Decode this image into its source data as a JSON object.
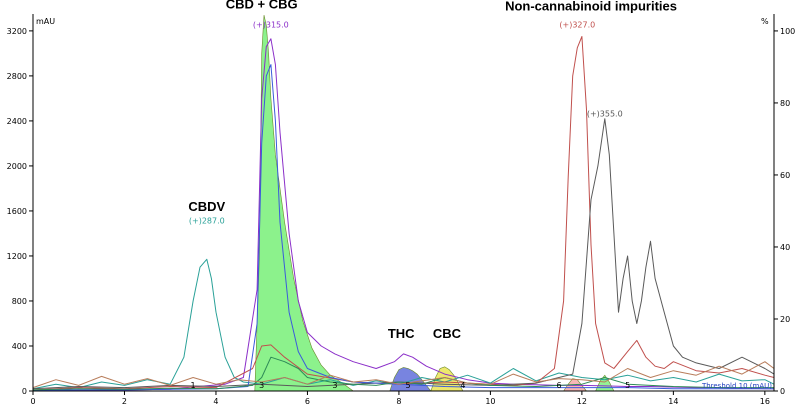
{
  "chart_data": {
    "type": "line",
    "title": "",
    "xlabel": "",
    "ylabel": "mAU",
    "y2label": "%",
    "xlim": [
      0,
      16.2
    ],
    "ylim": [
      0,
      3350
    ],
    "y2lim": [
      0,
      104.7
    ],
    "x_ticks": [
      0,
      2,
      4,
      6,
      8,
      10,
      12,
      14,
      16
    ],
    "y_ticks": [
      0,
      400,
      800,
      1200,
      1600,
      2000,
      2400,
      2800,
      3200
    ],
    "y2_ticks": [
      0,
      20,
      40,
      60,
      80,
      100
    ],
    "y2_tick_labels": [
      "0",
      "20",
      "40",
      "60",
      "80",
      "100"
    ],
    "grid": false,
    "annotations": [
      {
        "text": "CBD + CBG",
        "x": 5.0,
        "y": 3400
      },
      {
        "text": "CBDV",
        "x": 3.8,
        "y": 1600
      },
      {
        "text": "THC",
        "x": 8.05,
        "y": 470
      },
      {
        "text": "CBC",
        "x": 9.05,
        "y": 470
      },
      {
        "text": "Non-cannabinoid impurities",
        "x": 12.2,
        "y": 3380
      }
    ],
    "peak_labels": [
      {
        "text": "(+)315.0",
        "x": 5.2,
        "y": 3230,
        "color": "#8b2fc9"
      },
      {
        "text": "(+)287.0",
        "x": 3.8,
        "y": 1490,
        "color": "#2aa198"
      },
      {
        "text": "(+)327.0",
        "x": 11.9,
        "y": 3230,
        "color": "#c0504d"
      },
      {
        "text": "(+)355.0",
        "x": 12.5,
        "y": 2440,
        "color": "#555555"
      }
    ],
    "peak_numbers": [
      {
        "text": "1",
        "x": 3.5
      },
      {
        "text": "3",
        "x": 5.0
      },
      {
        "text": "3",
        "x": 6.6
      },
      {
        "text": "5",
        "x": 8.2
      },
      {
        "text": "4",
        "x": 9.4
      },
      {
        "text": "6",
        "x": 11.5
      },
      {
        "text": "5",
        "x": 13.0
      }
    ],
    "threshold_text": "Threshold 10 (mAU)",
    "fills": [
      {
        "name": "",
        "color": "#66ee66",
        "opacity": 0.75,
        "x": [
          4.85,
          4.95,
          5.0,
          5.05,
          5.1,
          5.15,
          5.2,
          5.3,
          5.5,
          5.7,
          5.9,
          6.1,
          6.3,
          6.5,
          6.8,
          7.0
        ],
        "y": [
          0,
          1200,
          3000,
          3340,
          3250,
          3000,
          2600,
          2100,
          1500,
          1000,
          620,
          380,
          230,
          140,
          60,
          0
        ]
      },
      {
        "name": "",
        "color": "#4b5bd6",
        "opacity": 0.75,
        "x": [
          7.8,
          7.9,
          8.0,
          8.1,
          8.2,
          8.3,
          8.4,
          8.5,
          8.6,
          8.7
        ],
        "y": [
          0,
          120,
          190,
          210,
          200,
          180,
          150,
          100,
          50,
          0
        ]
      },
      {
        "name": "",
        "color": "#e8e24a",
        "opacity": 0.8,
        "x": [
          8.7,
          8.8,
          8.9,
          9.0,
          9.1,
          9.2,
          9.3,
          9.4
        ],
        "y": [
          0,
          120,
          200,
          215,
          190,
          140,
          70,
          0
        ]
      },
      {
        "name": "",
        "color": "#f4a4a4",
        "opacity": 0.8,
        "x": [
          11.6,
          11.7,
          11.8,
          11.9,
          12.0,
          12.1
        ],
        "y": [
          0,
          60,
          110,
          100,
          50,
          0
        ]
      },
      {
        "name": "",
        "color": "#66ee66",
        "opacity": 0.7,
        "x": [
          12.3,
          12.4,
          12.5,
          12.6,
          12.7
        ],
        "y": [
          0,
          90,
          140,
          80,
          0
        ]
      }
    ],
    "series": [
      {
        "name": "",
        "color": "#8b2fc9",
        "x": [
          0,
          1,
          2,
          3,
          3.6,
          4.2,
          4.6,
          4.9,
          5.0,
          5.1,
          5.2,
          5.3,
          5.4,
          5.6,
          5.8,
          6.0,
          6.3,
          6.6,
          7.0,
          7.5,
          7.9,
          8.1,
          8.3,
          8.6,
          9.0,
          9.5,
          10.0,
          10.5,
          11.0,
          11.5,
          12.0,
          12.5,
          13.0,
          13.5,
          14.0,
          14.5,
          15.0,
          15.5,
          16.0,
          16.2
        ],
        "y": [
          5,
          8,
          10,
          15,
          40,
          60,
          120,
          900,
          2600,
          3060,
          3130,
          2900,
          2300,
          1400,
          800,
          520,
          400,
          330,
          260,
          200,
          260,
          330,
          300,
          220,
          150,
          100,
          70,
          60,
          55,
          50,
          50,
          45,
          40,
          40,
          35,
          30,
          30,
          25,
          20,
          20
        ]
      },
      {
        "name": "",
        "color": "#2aa198",
        "x": [
          0,
          0.5,
          1.0,
          1.5,
          2.0,
          2.5,
          3.0,
          3.3,
          3.5,
          3.65,
          3.8,
          3.9,
          4.0,
          4.2,
          4.4,
          4.6,
          5.0,
          5.5,
          6.0,
          6.5,
          7.0,
          7.5,
          8.0,
          8.5,
          9.0,
          9.5,
          10.0,
          10.5,
          11.0,
          11.5,
          12.0,
          12.5,
          13.0,
          13.5,
          14.0,
          14.5,
          15.0,
          15.5,
          16.0,
          16.2
        ],
        "y": [
          20,
          60,
          30,
          80,
          50,
          100,
          60,
          300,
          800,
          1100,
          1170,
          1000,
          700,
          300,
          120,
          80,
          60,
          120,
          60,
          100,
          50,
          90,
          60,
          120,
          80,
          140,
          70,
          200,
          90,
          160,
          120,
          100,
          140,
          90,
          120,
          80,
          150,
          90,
          100,
          60
        ]
      },
      {
        "name": "",
        "color": "#c0504d",
        "x": [
          0,
          1,
          2,
          3,
          4,
          4.8,
          5.0,
          5.2,
          5.5,
          6.0,
          7,
          8,
          9,
          10,
          10.5,
          11.0,
          11.4,
          11.6,
          11.7,
          11.8,
          11.9,
          12.0,
          12.1,
          12.2,
          12.3,
          12.5,
          12.7,
          13.0,
          13.2,
          13.4,
          13.6,
          13.8,
          14.0,
          14.5,
          15.0,
          15.5,
          16.0,
          16.2
        ],
        "y": [
          10,
          30,
          20,
          40,
          30,
          200,
          400,
          410,
          300,
          150,
          80,
          60,
          80,
          60,
          50,
          70,
          200,
          800,
          1900,
          2800,
          3050,
          3150,
          2500,
          1300,
          600,
          250,
          200,
          350,
          450,
          300,
          220,
          200,
          260,
          180,
          160,
          200,
          140,
          120
        ]
      },
      {
        "name": "",
        "color": "#5a5a5a",
        "x": [
          0,
          1,
          2,
          3,
          4,
          5,
          6,
          7,
          8,
          9,
          10,
          11,
          11.8,
          12.0,
          12.2,
          12.35,
          12.5,
          12.6,
          12.7,
          12.8,
          12.9,
          13.0,
          13.1,
          13.2,
          13.3,
          13.4,
          13.5,
          13.6,
          13.8,
          14.0,
          14.2,
          14.5,
          15.0,
          15.5,
          16.0,
          16.2
        ],
        "y": [
          20,
          40,
          30,
          50,
          40,
          60,
          40,
          60,
          80,
          60,
          50,
          70,
          150,
          600,
          1700,
          2000,
          2420,
          2100,
          1400,
          700,
          1000,
          1200,
          800,
          600,
          800,
          1100,
          1330,
          1000,
          700,
          400,
          300,
          250,
          200,
          300,
          200,
          150
        ]
      },
      {
        "name": "",
        "color": "#3b5bdb",
        "x": [
          0,
          1,
          2,
          3,
          4,
          4.7,
          4.9,
          5.0,
          5.1,
          5.2,
          5.3,
          5.4,
          5.6,
          5.8,
          6.0,
          6.5,
          7.0,
          8,
          9,
          10,
          11,
          12,
          13,
          14,
          15,
          16,
          16.2
        ],
        "y": [
          5,
          10,
          10,
          15,
          20,
          40,
          600,
          2200,
          2800,
          2900,
          2400,
          1500,
          700,
          350,
          200,
          120,
          80,
          60,
          40,
          30,
          30,
          30,
          30,
          20,
          20,
          20,
          20
        ]
      },
      {
        "name": "",
        "color": "#2e8b57",
        "x": [
          0,
          1,
          2,
          3,
          4,
          4.8,
          5.0,
          5.2,
          5.5,
          5.8,
          6.0,
          6.5,
          7.0,
          7.5,
          8.0,
          8.5,
          9.0,
          9.5,
          10.0,
          11.0,
          12.0,
          12.5,
          13.0,
          14.0,
          15.0,
          16.0,
          16.2
        ],
        "y": [
          10,
          20,
          15,
          25,
          20,
          50,
          120,
          300,
          260,
          200,
          120,
          80,
          60,
          50,
          80,
          60,
          120,
          70,
          50,
          40,
          60,
          120,
          60,
          40,
          30,
          30,
          30
        ]
      },
      {
        "name": "",
        "color": "#b87d5b",
        "x": [
          0,
          0.5,
          1.0,
          1.5,
          2.0,
          2.5,
          3.0,
          3.5,
          4.0,
          4.5,
          5.0,
          5.5,
          6.0,
          6.5,
          7.0,
          7.5,
          8.0,
          8.5,
          9.0,
          9.5,
          10.0,
          10.5,
          11.0,
          11.5,
          12.0,
          12.5,
          13.0,
          13.5,
          14.0,
          14.5,
          15.0,
          15.5,
          16.0,
          16.2
        ],
        "y": [
          30,
          100,
          50,
          130,
          60,
          110,
          50,
          120,
          60,
          100,
          80,
          120,
          60,
          140,
          80,
          100,
          60,
          90,
          120,
          70,
          60,
          150,
          80,
          110,
          100,
          80,
          200,
          120,
          180,
          140,
          220,
          150,
          260,
          200
        ]
      }
    ]
  }
}
